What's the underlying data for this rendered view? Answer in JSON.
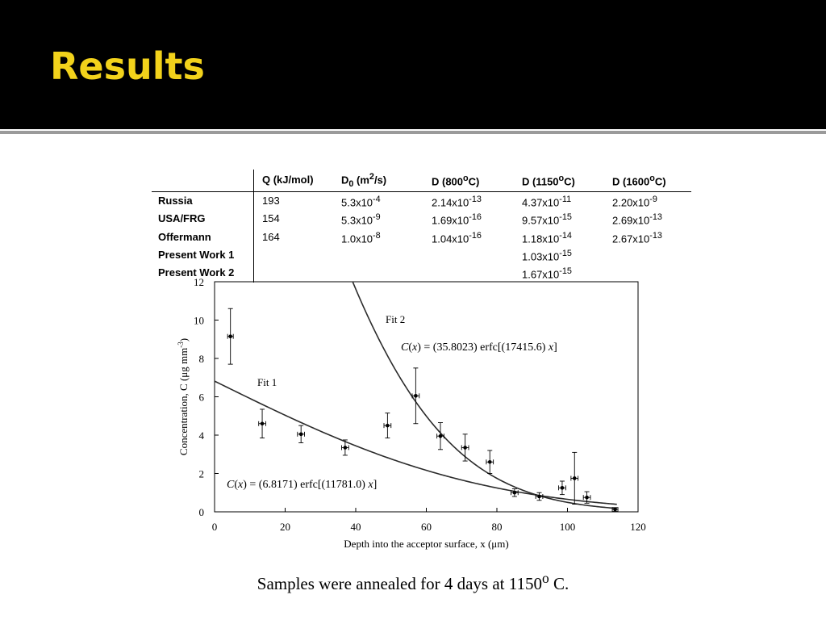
{
  "slide": {
    "title": "Results",
    "caption": "Samples were annealed for 4 days at 1150",
    "caption_sup": "o",
    "caption_end": " C."
  },
  "table": {
    "columns": [
      {
        "base": "",
        "sub": "",
        "sup": "",
        "tail": ""
      },
      {
        "base": "Q (kJ/mol)",
        "sub": "",
        "sup": "",
        "tail": ""
      },
      {
        "base": "D",
        "sub": "0",
        "sup": "",
        "tail": " (m",
        "sup2": "2",
        "tail2": "/s)"
      },
      {
        "base": "D (800",
        "sub": "",
        "sup": "o",
        "tail": "C)"
      },
      {
        "base": "D (1150",
        "sub": "",
        "sup": "o",
        "tail": "C)"
      },
      {
        "base": "D (1600",
        "sub": "",
        "sup": "o",
        "tail": "C)"
      }
    ],
    "rows": [
      {
        "name": "Russia",
        "q": "193",
        "d0": {
          "m": "5.3x10",
          "e": "-4"
        },
        "d800": {
          "m": "2.14x10",
          "e": "-13"
        },
        "d1150": {
          "m": "4.37x10",
          "e": "-11"
        },
        "d1600": {
          "m": "2.20x10",
          "e": "-9"
        }
      },
      {
        "name": "USA/FRG",
        "q": "154",
        "d0": {
          "m": "5.3x10",
          "e": "-9"
        },
        "d800": {
          "m": "1.69x10",
          "e": "-16"
        },
        "d1150": {
          "m": "9.57x10",
          "e": "-15"
        },
        "d1600": {
          "m": "2.69x10",
          "e": "-13"
        }
      },
      {
        "name": "Offermann",
        "q": "164",
        "d0": {
          "m": "1.0x10",
          "e": "-8"
        },
        "d800": {
          "m": "1.04x10",
          "e": "-16"
        },
        "d1150": {
          "m": "1.18x10",
          "e": "-14"
        },
        "d1600": {
          "m": "2.67x10",
          "e": "-13"
        }
      },
      {
        "name": "Present Work 1",
        "q": "",
        "d0": {
          "m": "",
          "e": ""
        },
        "d800": {
          "m": "",
          "e": ""
        },
        "d1150": {
          "m": "1.03x10",
          "e": "-15"
        },
        "d1600": {
          "m": "",
          "e": ""
        }
      },
      {
        "name": "Present Work 2",
        "q": "",
        "d0": {
          "m": "",
          "e": ""
        },
        "d800": {
          "m": "",
          "e": ""
        },
        "d1150": {
          "m": "1.67x10",
          "e": "-15"
        },
        "d1600": {
          "m": "",
          "e": ""
        }
      }
    ]
  },
  "chart_data": {
    "type": "scatter",
    "ylabel": "Concentration,  C (μg mm",
    "ylabel_sup": "-3",
    "ylabel_end": ")",
    "xlabel": "Depth into the acceptor surface, x (μm)",
    "xlim": [
      0,
      120
    ],
    "ylim": [
      0,
      12
    ],
    "xticks": [
      "0",
      "20",
      "40",
      "60",
      "80",
      "100",
      "120"
    ],
    "yticks": [
      "0",
      "2",
      "4",
      "6",
      "8",
      "10",
      "12"
    ],
    "grid": false,
    "points": [
      {
        "x": 4.5,
        "y": 9.15,
        "xerr": 0.8,
        "yerr": 1.45
      },
      {
        "x": 13.5,
        "y": 4.6,
        "xerr": 1.0,
        "yerr": 0.75
      },
      {
        "x": 24.5,
        "y": 4.05,
        "xerr": 1.0,
        "yerr": 0.45
      },
      {
        "x": 37.0,
        "y": 3.35,
        "xerr": 1.0,
        "yerr": 0.4
      },
      {
        "x": 49.0,
        "y": 4.5,
        "xerr": 1.0,
        "yerr": 0.65
      },
      {
        "x": 57.0,
        "y": 6.05,
        "xerr": 1.0,
        "yerr": 1.45
      },
      {
        "x": 64.0,
        "y": 3.95,
        "xerr": 1.0,
        "yerr": 0.7
      },
      {
        "x": 71.0,
        "y": 3.35,
        "xerr": 1.0,
        "yerr": 0.7
      },
      {
        "x": 78.0,
        "y": 2.6,
        "xerr": 1.0,
        "yerr": 0.6
      },
      {
        "x": 85.0,
        "y": 1.0,
        "xerr": 1.0,
        "yerr": 0.2
      },
      {
        "x": 92.0,
        "y": 0.8,
        "xerr": 1.0,
        "yerr": 0.2
      },
      {
        "x": 98.5,
        "y": 1.25,
        "xerr": 1.0,
        "yerr": 0.35
      },
      {
        "x": 102.0,
        "y": 1.75,
        "xerr": 1.0,
        "yerr": 1.35
      },
      {
        "x": 105.5,
        "y": 0.75,
        "xerr": 1.0,
        "yerr": 0.3
      },
      {
        "x": 113.5,
        "y": 0.12,
        "xerr": 0.8,
        "yerr": 0.1
      }
    ],
    "fits": [
      {
        "name": "Fit 1",
        "A": 6.8171,
        "k": 11781.0,
        "x_from": 0,
        "x_to": 114,
        "eq_lhs": "C",
        "eq_var": "x",
        "eq_a": "6.8171",
        "eq_k": "11781.0"
      },
      {
        "name": "Fit 2",
        "A": 35.8023,
        "k": 17415.6,
        "x_from": 30,
        "x_to": 114,
        "eq_lhs": "C",
        "eq_var": "x",
        "eq_a": "35.8023",
        "eq_k": "17415.6"
      }
    ],
    "eq_mid": "erfc",
    "eq_eq": "="
  }
}
